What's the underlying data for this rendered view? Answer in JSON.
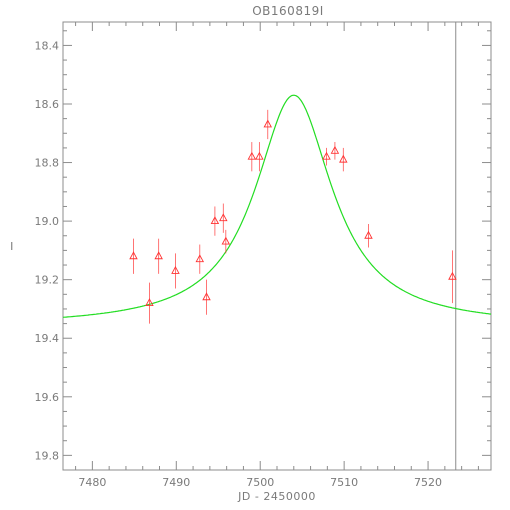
{
  "chart_data": {
    "type": "scatter",
    "title": "OB160819I",
    "xlabel": "JD - 2450000",
    "ylabel": "I",
    "xlim": [
      7476.5,
      7527.5
    ],
    "ylim": [
      19.85,
      18.32
    ],
    "y_inverted": true,
    "grid": false,
    "xticks": [
      7480,
      7490,
      7500,
      7510,
      7520
    ],
    "yticks": [
      18.4,
      18.6,
      18.8,
      19.0,
      19.2,
      19.4,
      19.6,
      19.8
    ],
    "ytick_labels": [
      "18.4",
      "18.6",
      "18.8",
      "19.0",
      "19.2",
      "19.4",
      "19.6",
      "19.8"
    ],
    "vertical_line_x": 7523.3,
    "colors": {
      "points": "#ff3333",
      "model": "#22dd22",
      "frame": "#8c8c8c",
      "vline": "#8c8c8c"
    },
    "series": [
      {
        "type": "scatter",
        "marker": "triangle",
        "x": [
          7484.9,
          7486.8,
          7487.9,
          7489.9,
          7492.8,
          7493.6,
          7494.6,
          7495.6,
          7495.9,
          7499.0,
          7499.9,
          7500.9,
          7507.9,
          7508.9,
          7509.9,
          7512.9,
          7522.9
        ],
        "y": [
          19.12,
          19.28,
          19.12,
          19.17,
          19.13,
          19.26,
          19.0,
          18.99,
          19.07,
          18.78,
          18.78,
          18.67,
          18.78,
          18.76,
          18.79,
          19.05,
          19.19
        ],
        "err": [
          0.06,
          0.07,
          0.06,
          0.06,
          0.05,
          0.06,
          0.05,
          0.05,
          0.04,
          0.05,
          0.05,
          0.05,
          0.03,
          0.03,
          0.04,
          0.04,
          0.09
        ]
      },
      {
        "type": "line",
        "model": "lorentzian",
        "peak_x": 7504.0,
        "peak_y": 18.57,
        "baseline_y": 19.36,
        "half_width": 5.6
      }
    ]
  }
}
